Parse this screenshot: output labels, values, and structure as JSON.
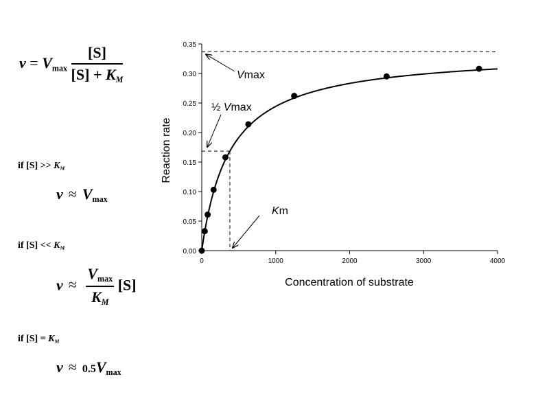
{
  "equations": {
    "main": {
      "lhs": "v",
      "equals": "=",
      "vmax_V": "V",
      "vmax_sub": "max",
      "numerator": "[S]",
      "den_S": "[S]",
      "den_plus": "+",
      "den_K": "K",
      "den_K_sub": "M"
    },
    "case1": {
      "condition": "if [S] >> ",
      "cond_K": "K",
      "cond_K_sub": "M",
      "v": "v",
      "approx": "≈",
      "V": "V",
      "V_sub": "max"
    },
    "case2": {
      "condition": "if [S] << ",
      "cond_K": "K",
      "cond_K_sub": "M",
      "v": "v",
      "approx": "≈",
      "num_V": "V",
      "num_sub": "max",
      "den_K": "K",
      "den_K_sub": "M",
      "S": "[S]"
    },
    "case3": {
      "condition": "if [S] = ",
      "cond_K": "K",
      "cond_K_sub": "M",
      "v": "v",
      "approx": "≈",
      "coef": "0.5",
      "V": "V",
      "V_sub": "max"
    }
  },
  "chart_data": {
    "type": "scatter",
    "xlabel": "Concentration of substrate",
    "ylabel": "Reaction rate",
    "xlim": [
      0,
      4000
    ],
    "ylim": [
      0,
      0.35
    ],
    "xticks": [
      "0",
      "1000",
      "2000",
      "3000",
      "4000"
    ],
    "yticks": [
      "0.00",
      "0.05",
      "0.10",
      "0.15",
      "0.20",
      "0.25",
      "0.30",
      "0.35"
    ],
    "points": [
      {
        "x": 0,
        "y": 0.0
      },
      {
        "x": 40,
        "y": 0.033
      },
      {
        "x": 80,
        "y": 0.061
      },
      {
        "x": 160,
        "y": 0.103
      },
      {
        "x": 320,
        "y": 0.158
      },
      {
        "x": 630,
        "y": 0.214
      },
      {
        "x": 1250,
        "y": 0.262
      },
      {
        "x": 2500,
        "y": 0.295
      },
      {
        "x": 3750,
        "y": 0.308
      }
    ],
    "fit_curve": {
      "model": "michaelis-menten",
      "vmax": 0.337,
      "km": 380
    },
    "annotations": {
      "vmax": {
        "prefix": "V",
        "suffix": "max"
      },
      "half_vmax": {
        "prefix": "½ ",
        "italic": "V",
        "suffix": "max"
      },
      "km": {
        "italic": "K",
        "suffix": "m"
      }
    },
    "grid": false,
    "legend": "none"
  }
}
